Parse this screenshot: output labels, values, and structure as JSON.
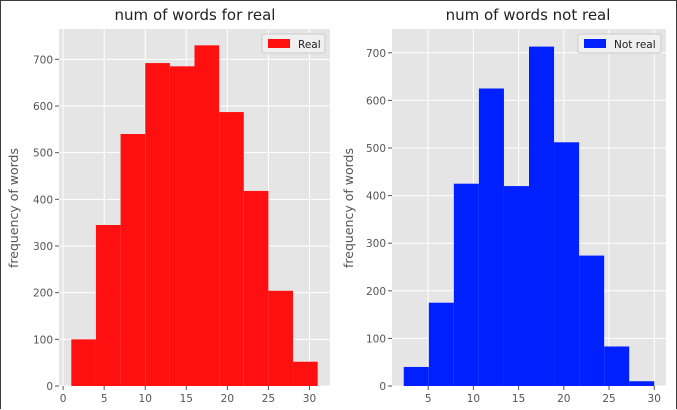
{
  "chart_data": [
    {
      "type": "bar",
      "title": "num of words for real",
      "ylabel": "frequency of words",
      "xlabel": "",
      "legend": {
        "label": "Real",
        "position": "top-right"
      },
      "color": "#ff1010",
      "bin_edges": [
        1,
        4,
        7,
        10,
        13,
        16,
        19,
        22,
        25,
        28,
        31
      ],
      "values": [
        100,
        345,
        540,
        692,
        685,
        730,
        587,
        418,
        204,
        52
      ],
      "xlim": [
        -0.5,
        32.5
      ],
      "ylim": [
        0,
        765
      ],
      "xticks": [
        0,
        5,
        10,
        15,
        20,
        25,
        30
      ],
      "yticks": [
        0,
        100,
        200,
        300,
        400,
        500,
        600,
        700
      ],
      "grid": true
    },
    {
      "type": "bar",
      "title": "num of words not real",
      "ylabel": "frequency of words",
      "xlabel": "",
      "legend": {
        "label": "Not real",
        "position": "top-right"
      },
      "color": "#0020ff",
      "bin_edges": [
        2.3,
        5.07,
        7.84,
        10.61,
        13.38,
        16.15,
        18.92,
        21.69,
        24.46,
        27.23,
        30
      ],
      "values": [
        40,
        175,
        425,
        625,
        420,
        713,
        512,
        274,
        83,
        10
      ],
      "xlim": [
        1,
        31.3
      ],
      "ylim": [
        0,
        750
      ],
      "xticks": [
        5,
        10,
        15,
        20,
        25,
        30
      ],
      "yticks": [
        0,
        100,
        200,
        300,
        400,
        500,
        600,
        700
      ],
      "grid": true
    }
  ]
}
